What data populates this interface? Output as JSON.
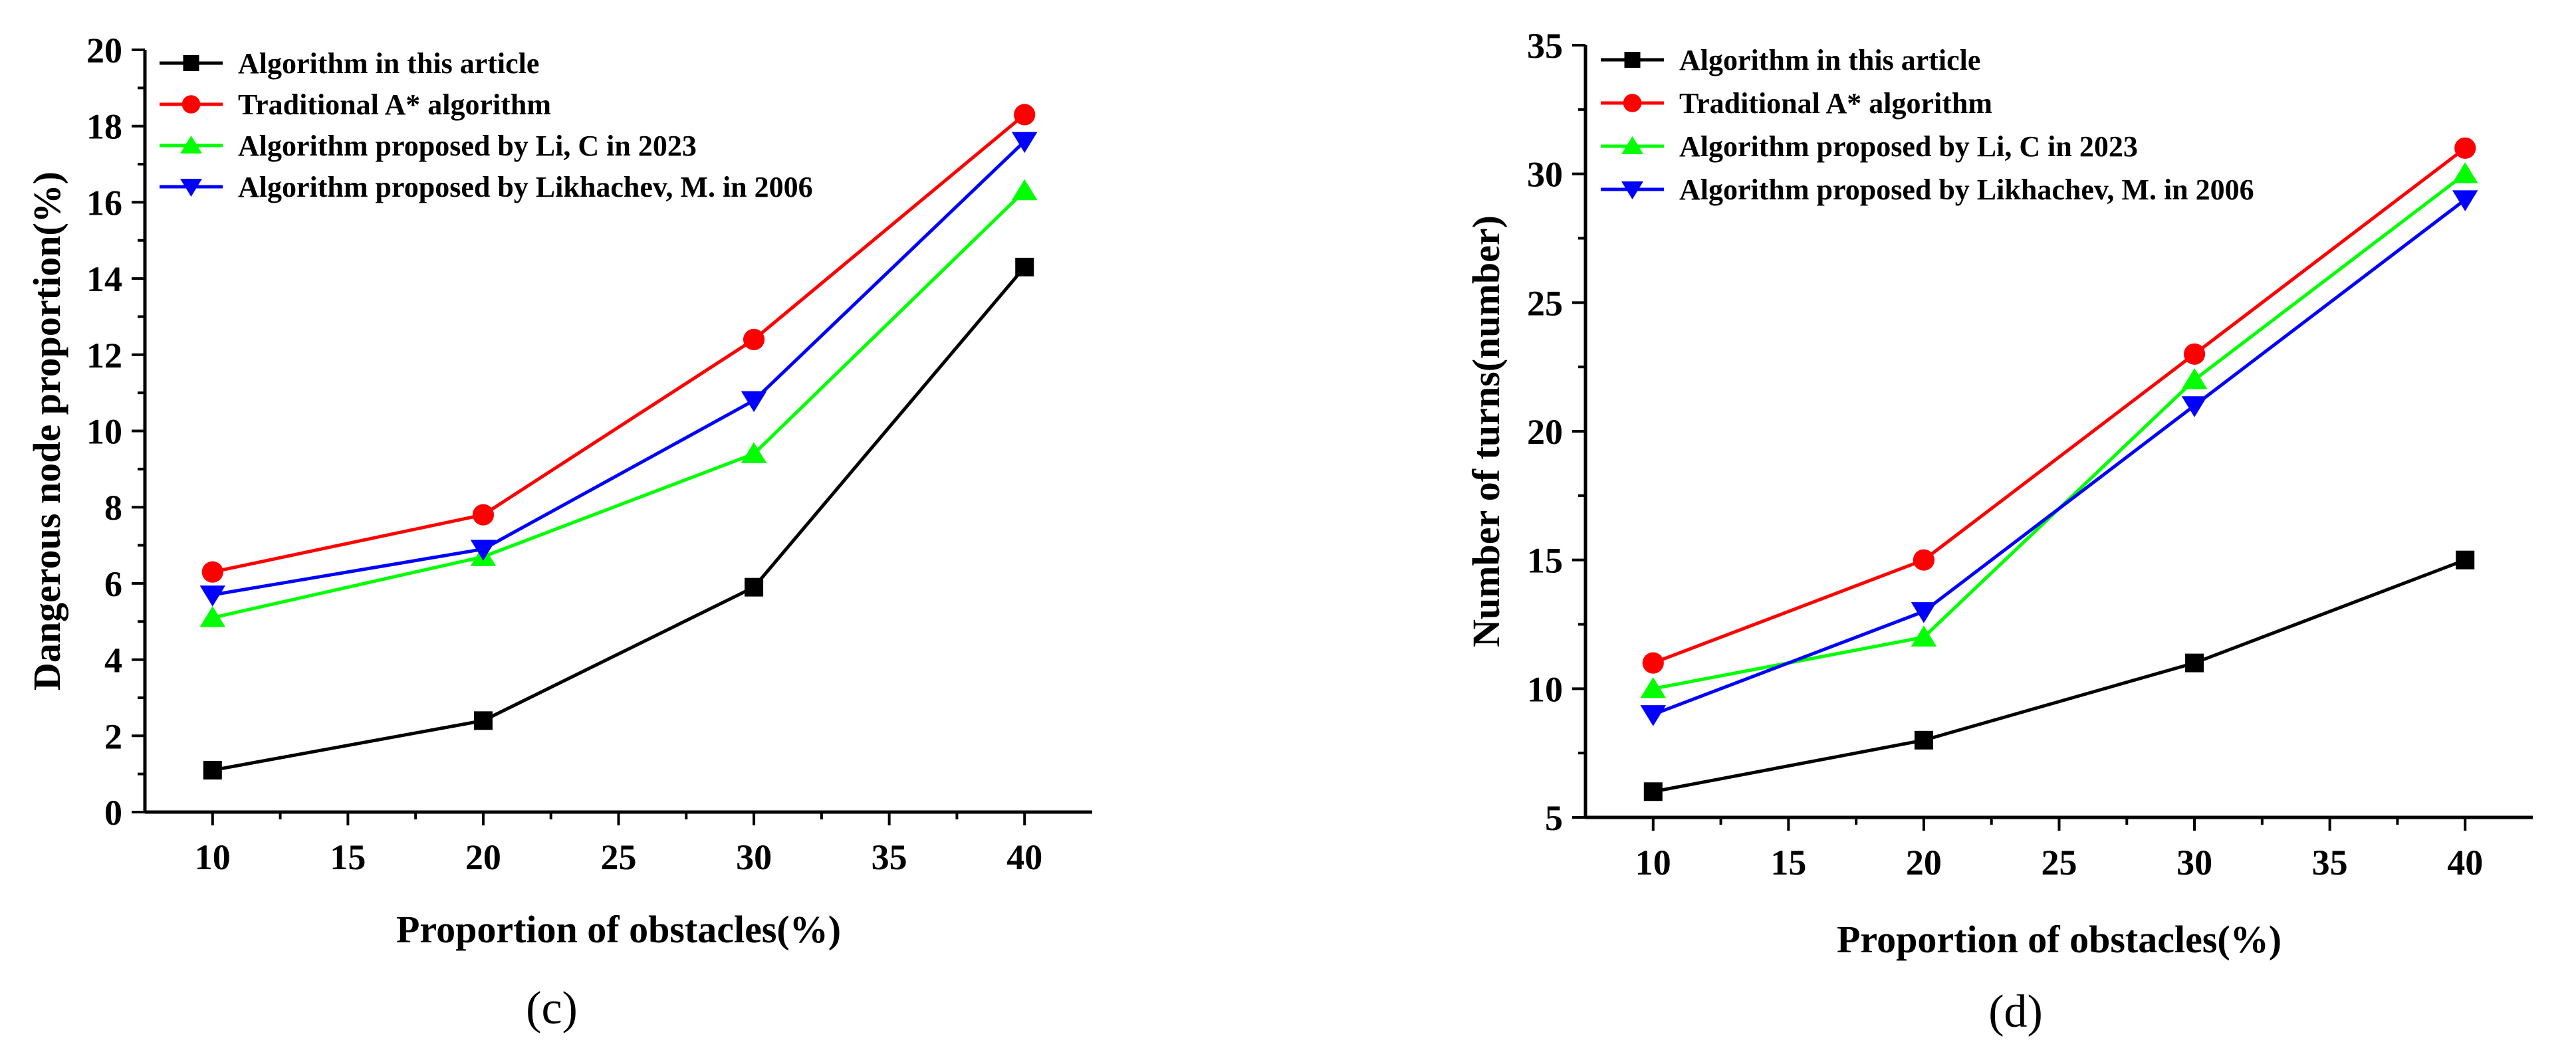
{
  "chart_data": [
    {
      "panel": "(c)",
      "type": "line",
      "caption": "(c)",
      "xlabel": "Proportion of obstacles(%)",
      "ylabel": "Dangerous node proportion(%)",
      "x": [
        10,
        20,
        30,
        40
      ],
      "xlim": [
        7.5,
        42.5
      ],
      "ylim": [
        0,
        20
      ],
      "xticks": [
        10,
        15,
        20,
        25,
        30,
        35,
        40
      ],
      "yticks": [
        0,
        2,
        4,
        6,
        8,
        10,
        12,
        14,
        16,
        18,
        20
      ],
      "legend_position": "top-left",
      "series": [
        {
          "name": "Algorithm in this article",
          "color": "#000000",
          "marker": "square",
          "values": [
            1.1,
            2.4,
            5.9,
            14.3
          ]
        },
        {
          "name": "Traditional A* algorithm",
          "color": "#ff0000",
          "marker": "circle",
          "values": [
            6.3,
            7.8,
            12.4,
            18.3
          ]
        },
        {
          "name": "Algorithm proposed by Li, C in 2023",
          "color": "#00ff00",
          "marker": "triangle-up",
          "values": [
            5.1,
            6.7,
            9.4,
            16.3
          ]
        },
        {
          "name": "Algorithm proposed by Likhachev, M. in 2006",
          "color": "#0000ff",
          "marker": "triangle-down",
          "values": [
            5.7,
            6.9,
            10.8,
            17.6
          ]
        }
      ]
    },
    {
      "panel": "(d)",
      "type": "line",
      "caption": "(d)",
      "xlabel": "Proportion of obstacles(%)",
      "ylabel": "Number of turns(number)",
      "x": [
        10,
        20,
        30,
        40
      ],
      "xlim": [
        7.5,
        42.5
      ],
      "ylim": [
        5,
        35
      ],
      "xticks": [
        10,
        15,
        20,
        25,
        30,
        35,
        40
      ],
      "yticks": [
        5,
        10,
        15,
        20,
        25,
        30,
        35
      ],
      "legend_position": "top-left",
      "series": [
        {
          "name": "Algorithm in this article",
          "color": "#000000",
          "marker": "square",
          "values": [
            6,
            8,
            11,
            15
          ]
        },
        {
          "name": "Traditional A* algorithm",
          "color": "#ff0000",
          "marker": "circle",
          "values": [
            11,
            15,
            23,
            31
          ]
        },
        {
          "name": "Algorithm proposed by Li, C in 2023",
          "color": "#00ff00",
          "marker": "triangle-up",
          "values": [
            10,
            12,
            22,
            30
          ]
        },
        {
          "name": "Algorithm proposed by Likhachev, M. in 2006",
          "color": "#0000ff",
          "marker": "triangle-down",
          "values": [
            9,
            13,
            21,
            29
          ]
        }
      ]
    }
  ]
}
